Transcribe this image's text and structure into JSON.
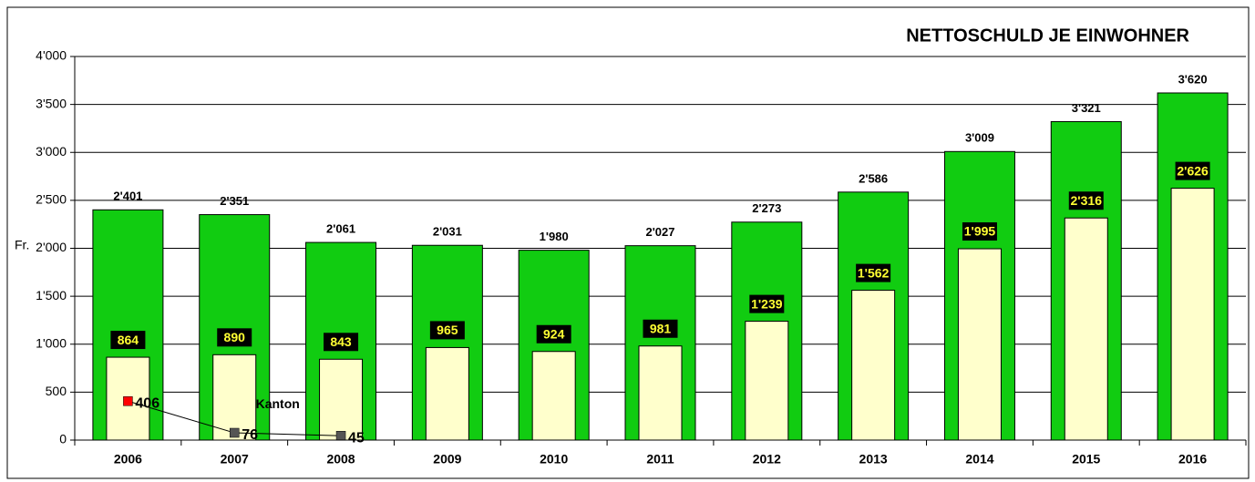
{
  "chart_data": {
    "type": "bar",
    "title": "NETTOSCHULD JE EINWOHNER",
    "y_label": "Fr.",
    "categories": [
      "2006",
      "2007",
      "2008",
      "2009",
      "2010",
      "2011",
      "2012",
      "2013",
      "2014",
      "2015",
      "2016"
    ],
    "series": [
      {
        "type": "bar",
        "color": "#11cc11",
        "values": [
          2401,
          2351,
          2061,
          2031,
          1980,
          2027,
          2273,
          2586,
          3009,
          3321,
          3620
        ],
        "value_labels": [
          "2'401",
          "2'351",
          "2'061",
          "2'031",
          "1'980",
          "2'027",
          "2'273",
          "2'586",
          "3'009",
          "3'321",
          "3'620"
        ]
      },
      {
        "type": "bar",
        "color": "#ffffcc",
        "values": [
          864,
          890,
          843,
          965,
          924,
          981,
          1239,
          1562,
          1995,
          2316,
          2626
        ],
        "value_labels": [
          "864",
          "890",
          "843",
          "965",
          "924",
          "981",
          "1'239",
          "1'562",
          "1'995",
          "2'316",
          "2'626"
        ]
      },
      {
        "type": "line",
        "name": "Kanton",
        "color": "#000000",
        "values": [
          406,
          76,
          45,
          null,
          null,
          null,
          null,
          null,
          null,
          null,
          null
        ],
        "marker_colors": [
          "#ff0000",
          "#555555",
          "#555555",
          null,
          null,
          null,
          null,
          null,
          null,
          null,
          null
        ]
      }
    ],
    "ylim": [
      0,
      4000
    ],
    "yticks": [
      0,
      500,
      {
        "value": 1000,
        "label": "1'000"
      },
      {
        "value": 1500,
        "label": "1'500"
      },
      {
        "value": 2000,
        "label": "2'000"
      },
      {
        "value": 2500,
        "label": "2'500"
      },
      {
        "value": 3000,
        "label": "3'000"
      },
      {
        "value": 3500,
        "label": "3'500"
      },
      {
        "value": 4000,
        "label": "4'000"
      }
    ],
    "grid": true
  }
}
